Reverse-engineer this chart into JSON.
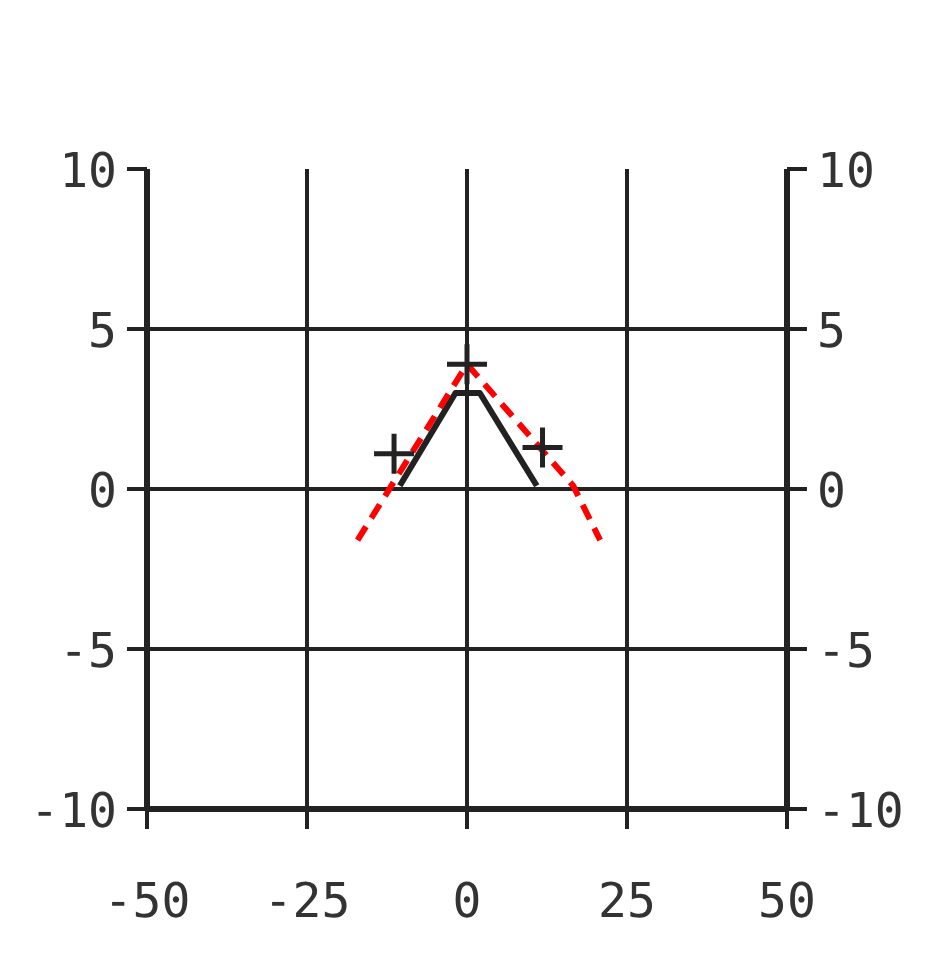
{
  "chart_data": {
    "type": "line",
    "xlim": [
      -50,
      50
    ],
    "ylim": [
      -10,
      10
    ],
    "y2lim": [
      -10,
      10
    ],
    "xticks": [
      -50,
      -25,
      0,
      25,
      50
    ],
    "yticks": [
      -10,
      -5,
      0,
      5,
      10
    ],
    "y2ticks": [
      -10,
      -5,
      0,
      5,
      10
    ],
    "grid": true,
    "series": [
      {
        "color": "#222222",
        "line_style": "solid",
        "x": [
          -10.5,
          -1.8,
          2,
          10.9
        ],
        "values": [
          0.1,
          3,
          3,
          0.1
        ]
      },
      {
        "color": "#ff0000",
        "line_style": "dashed",
        "x": [
          -17.1,
          0,
          16.6,
          20.8
        ],
        "values": [
          -1.6,
          3.9,
          0.1,
          -1.6
        ]
      },
      {
        "type": "scatter",
        "color": "#222222",
        "marker": "cross",
        "x": [
          -11.4,
          0,
          11.8
        ],
        "values": [
          1.1,
          3.9,
          1.3
        ]
      }
    ]
  }
}
